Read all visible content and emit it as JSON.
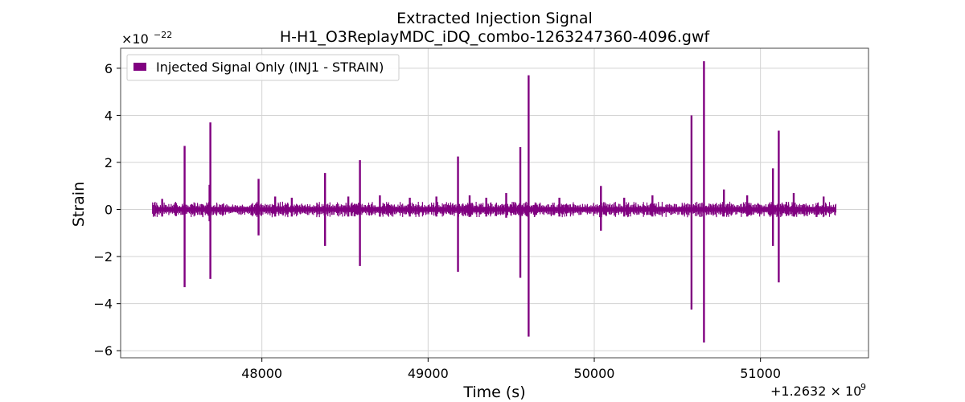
{
  "chart_data": {
    "type": "line",
    "title": [
      "Extracted Injection Signal",
      "H-H1_O3ReplayMDC_iDQ_combo-1263247360-4096.gwf"
    ],
    "xlabel": "Time (s)",
    "ylabel": "Strain",
    "x_offset_label": "+1.2632 × 10",
    "x_offset_exp": "9",
    "y_scale_label": "×10",
    "y_scale_exp": "−22",
    "xlim": [
      47150,
      51650
    ],
    "ylim": [
      -6.3,
      6.85
    ],
    "x_ticks": [
      48000,
      49000,
      50000,
      51000
    ],
    "x_tick_labels": [
      "48000",
      "49000",
      "50000",
      "51000"
    ],
    "y_ticks": [
      -6,
      -4,
      -2,
      0,
      2,
      4,
      6
    ],
    "y_tick_labels": [
      "−6",
      "−4",
      "−2",
      "0",
      "2",
      "4",
      "6"
    ],
    "grid": true,
    "legend_position": "upper-left",
    "series": [
      {
        "name": "Injected Signal Only (INJ1 - STRAIN)",
        "color": "#800080",
        "t_start": 47360,
        "t_end": 51456,
        "background_amplitude": 0.15,
        "spikes": [
          {
            "t": 47400,
            "up": 0.45,
            "down": -0.3
          },
          {
            "t": 47535,
            "up": 2.7,
            "down": -3.3
          },
          {
            "t": 47690,
            "up": 3.7,
            "down": -2.95
          },
          {
            "t": 47685,
            "up": 1.05,
            "down": -0.5
          },
          {
            "t": 47980,
            "up": 1.3,
            "down": -1.1
          },
          {
            "t": 48080,
            "up": 0.55,
            "down": -0.3
          },
          {
            "t": 48180,
            "up": 0.5,
            "down": -0.3
          },
          {
            "t": 48380,
            "up": 1.55,
            "down": -1.55
          },
          {
            "t": 48520,
            "up": 0.55,
            "down": -0.3
          },
          {
            "t": 48590,
            "up": 2.1,
            "down": -2.4
          },
          {
            "t": 48710,
            "up": 0.6,
            "down": -0.3
          },
          {
            "t": 48890,
            "up": 0.5,
            "down": -0.3
          },
          {
            "t": 49050,
            "up": 0.55,
            "down": -0.3
          },
          {
            "t": 49180,
            "up": 2.25,
            "down": -2.65
          },
          {
            "t": 49250,
            "up": 0.6,
            "down": -0.3
          },
          {
            "t": 49350,
            "up": 0.5,
            "down": -0.3
          },
          {
            "t": 49470,
            "up": 0.7,
            "down": -0.35
          },
          {
            "t": 49555,
            "up": 2.65,
            "down": -2.9
          },
          {
            "t": 49605,
            "up": 5.7,
            "down": -5.4
          },
          {
            "t": 49790,
            "up": 0.5,
            "down": -0.3
          },
          {
            "t": 50040,
            "up": 1.0,
            "down": -0.9
          },
          {
            "t": 50180,
            "up": 0.5,
            "down": -0.3
          },
          {
            "t": 50350,
            "up": 0.6,
            "down": -0.3
          },
          {
            "t": 50585,
            "up": 4.0,
            "down": -4.25
          },
          {
            "t": 50660,
            "up": 6.3,
            "down": -5.65
          },
          {
            "t": 50780,
            "up": 0.85,
            "down": -0.3
          },
          {
            "t": 50920,
            "up": 0.6,
            "down": -0.3
          },
          {
            "t": 51075,
            "up": 1.75,
            "down": -1.55
          },
          {
            "t": 51110,
            "up": 3.35,
            "down": -3.1
          },
          {
            "t": 51200,
            "up": 0.7,
            "down": -0.3
          },
          {
            "t": 51380,
            "up": 0.55,
            "down": -0.3
          }
        ]
      }
    ]
  }
}
